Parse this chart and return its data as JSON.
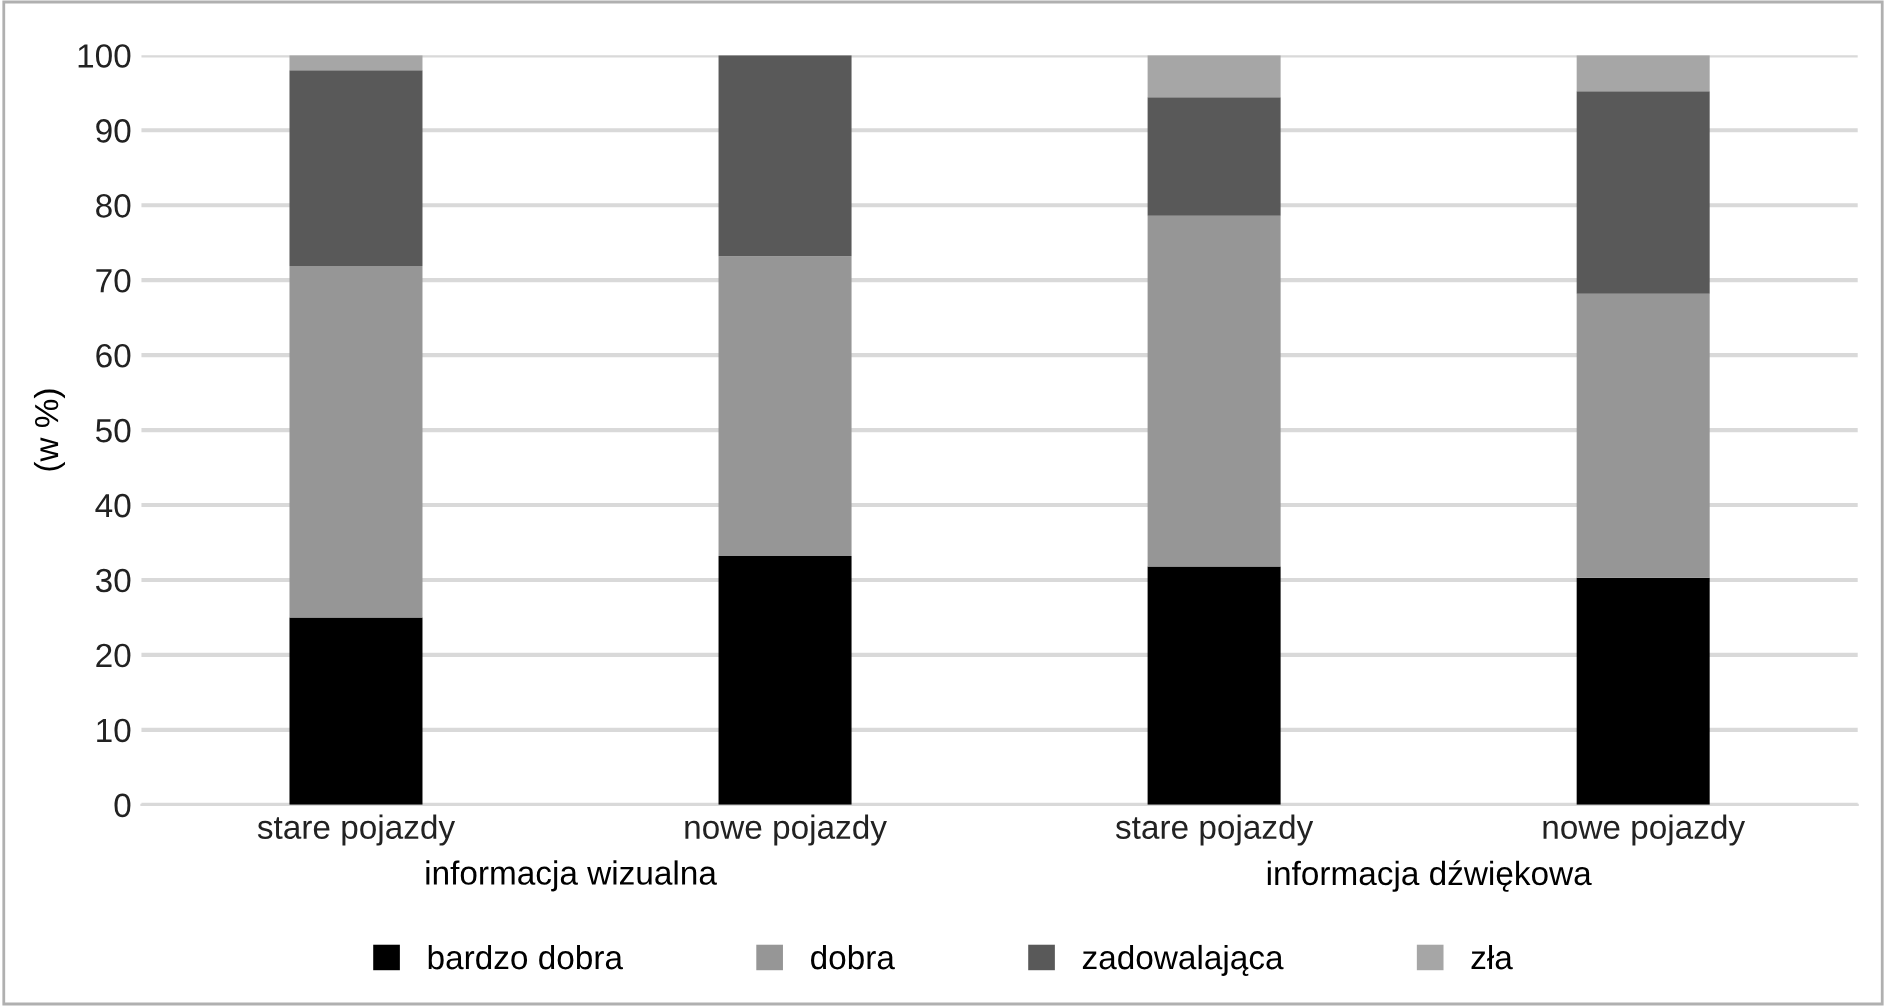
{
  "chart_data": {
    "type": "bar",
    "stacked": true,
    "ylabel": "(w %)",
    "categories": [
      "stare pojazdy",
      "nowe pojazdy",
      "stare pojazdy",
      "nowe pojazdy"
    ],
    "series": [
      {
        "name": "bardzo dobra",
        "color": "#000000",
        "values": [
          25.0,
          33.2,
          31.8,
          30.3
        ]
      },
      {
        "name": "dobra",
        "color": "#969696",
        "values": [
          46.9,
          40.0,
          46.8,
          37.9
        ]
      },
      {
        "name": "zadowalająca",
        "color": "#595959",
        "values": [
          26.1,
          26.8,
          15.8,
          27.0
        ]
      },
      {
        "name": "zła",
        "color": "#a6a6a6",
        "values": [
          2.0,
          0,
          5.6,
          4.8
        ]
      }
    ],
    "annotations": [
      "informacja wizualna",
      "informacja dźwiękowa"
    ],
    "ylim": [
      0,
      100
    ],
    "yticks": [
      0,
      10,
      20,
      30,
      40,
      50,
      60,
      70,
      80,
      90,
      100
    ],
    "grid": "y",
    "legend": "bottom"
  }
}
